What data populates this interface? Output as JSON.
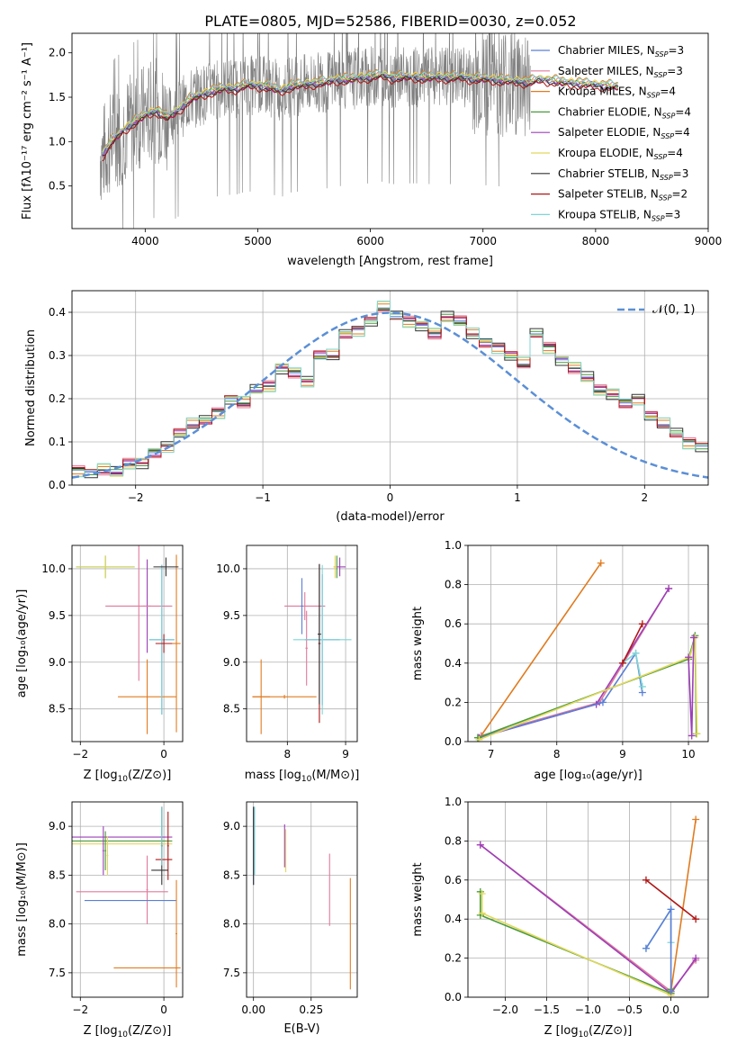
{
  "figure": {
    "title": "PLATE=0805, MJD=52586, FIBERID=0030, z=0.052"
  },
  "colors": {
    "observed": "#808080",
    "Chabrier MILES": "#5b7fd6",
    "Salpeter MILES": "#e07a9c",
    "Kroupa MILES": "#e07b20",
    "Chabrier ELODIE": "#4a9a3e",
    "Salpeter ELODIE": "#9c3fb8",
    "Kroupa ELODIE": "#e2d85c",
    "Chabrier STELIB": "#333333",
    "Salpeter STELIB": "#b01616",
    "Kroupa STELIB": "#7fd6d6",
    "gauss": "#5b8fd6"
  },
  "chart_data": [
    {
      "panel": "spectrum",
      "type": "line",
      "title": "PLATE=0805, MJD=52586, FIBERID=0030, z=0.052",
      "xlabel": "wavelength [Angstrom, rest frame]",
      "ylabel": "Flux [f_λ 10^-17 erg cm^-2 s^-1 A^-1]",
      "xlim": [
        3350,
        9000
      ],
      "ylim": [
        0.02,
        2.22
      ],
      "xticks": [
        4000,
        5000,
        6000,
        7000,
        8000,
        9000
      ],
      "yticks": [
        0.5,
        1.0,
        1.5,
        2.0
      ],
      "grid": false,
      "legend_position": "right",
      "observed_wavelength_range": [
        3600,
        7420
      ],
      "continuum_x": [
        3620,
        3700,
        3800,
        3900,
        4000,
        4100,
        4200,
        4300,
        4400,
        4500,
        4600,
        4700,
        4800,
        4900,
        5000,
        5100,
        5200,
        5300,
        5400,
        5500,
        5600,
        5700,
        5800,
        5900,
        6000,
        6100,
        6200,
        6300,
        6400,
        6500,
        6600,
        6700,
        6800,
        6900,
        7000,
        7100,
        7200,
        7300,
        7400,
        7500,
        7600,
        7700,
        7800,
        7900,
        8000,
        8100,
        8200
      ],
      "continuum_y": [
        0.85,
        1.0,
        1.12,
        1.22,
        1.3,
        1.35,
        1.27,
        1.36,
        1.48,
        1.53,
        1.57,
        1.6,
        1.6,
        1.64,
        1.63,
        1.62,
        1.57,
        1.63,
        1.64,
        1.66,
        1.67,
        1.7,
        1.7,
        1.72,
        1.73,
        1.75,
        1.72,
        1.73,
        1.73,
        1.72,
        1.73,
        1.72,
        1.73,
        1.71,
        1.71,
        1.7,
        1.69,
        1.68,
        1.67,
        1.7,
        1.69,
        1.67,
        1.66,
        1.65,
        1.64,
        1.63,
        1.62
      ],
      "series": [
        {
          "name": "Chabrier MILES",
          "nssp": "3",
          "offset": 0.0
        },
        {
          "name": "Salpeter MILES",
          "nssp": "3",
          "offset": 0.01
        },
        {
          "name": "Kroupa MILES",
          "nssp": "4",
          "offset": 0.04
        },
        {
          "name": "Chabrier ELODIE",
          "nssp": "4",
          "offset": 0.0
        },
        {
          "name": "Salpeter ELODIE",
          "nssp": "4",
          "offset": -0.01
        },
        {
          "name": "Kroupa ELODIE",
          "nssp": "4",
          "offset": 0.02
        },
        {
          "name": "Chabrier STELIB",
          "nssp": "3",
          "offset": -0.02
        },
        {
          "name": "Salpeter STELIB",
          "nssp": "2",
          "offset": -0.04
        },
        {
          "name": "Kroupa STELIB",
          "nssp": "3",
          "offset": 0.03
        }
      ]
    },
    {
      "panel": "residuals",
      "type": "line",
      "xlabel": "(data-model)/error",
      "ylabel": "Normed distribution",
      "xlim": [
        -2.5,
        2.5
      ],
      "ylim": [
        0.0,
        0.45
      ],
      "xticks": [
        -2,
        -1,
        0,
        1,
        2
      ],
      "yticks": [
        0.0,
        0.1,
        0.2,
        0.3,
        0.4
      ],
      "grid": true,
      "legend_position": "top-right",
      "legend_label": "𝒩(0, 1)",
      "bin_width": 0.1,
      "bin_start": -2.5,
      "values": [
        0.035,
        0.03,
        0.035,
        0.03,
        0.05,
        0.05,
        0.075,
        0.09,
        0.12,
        0.14,
        0.15,
        0.17,
        0.2,
        0.19,
        0.22,
        0.23,
        0.27,
        0.26,
        0.24,
        0.3,
        0.3,
        0.35,
        0.36,
        0.38,
        0.41,
        0.39,
        0.38,
        0.37,
        0.35,
        0.39,
        0.38,
        0.35,
        0.33,
        0.32,
        0.3,
        0.28,
        0.35,
        0.32,
        0.29,
        0.27,
        0.25,
        0.22,
        0.21,
        0.19,
        0.2,
        0.16,
        0.14,
        0.12,
        0.1,
        0.09
      ],
      "series_offsets": [
        {
          "name": "Chabrier MILES",
          "d": 0.0
        },
        {
          "name": "Salpeter MILES",
          "d": 0.012
        },
        {
          "name": "Kroupa MILES",
          "d": -0.01
        },
        {
          "name": "Chabrier ELODIE",
          "d": 0.006
        },
        {
          "name": "Salpeter ELODIE",
          "d": -0.006
        },
        {
          "name": "Kroupa ELODIE",
          "d": 0.015
        },
        {
          "name": "Chabrier STELIB",
          "d": -0.013
        },
        {
          "name": "Salpeter STELIB",
          "d": 0.009
        },
        {
          "name": "Kroupa STELIB",
          "d": -0.016
        }
      ]
    },
    {
      "panel": "Z-age",
      "type": "scatter",
      "xlabel": "Z [log10(Z/Z⊙)]",
      "ylabel": "age [log10(age/yr)]",
      "xlim": [
        -2.2,
        0.45
      ],
      "ylim": [
        8.15,
        10.25
      ],
      "xticks": [
        -2,
        0
      ],
      "yticks": [
        8.5,
        9.0,
        9.5,
        10.0
      ],
      "grid": true,
      "points": [
        {
          "s": "Chabrier ELODIE",
          "x": -1.4,
          "xe": 0.7,
          "y": 10.02,
          "ye": 0.12
        },
        {
          "s": "Kroupa ELODIE",
          "x": -1.4,
          "xe": 0.7,
          "y": 10.02,
          "ye": 0.12
        },
        {
          "s": "Salpeter ELODIE",
          "x": -0.4,
          "xe": 0.1,
          "y": 9.6,
          "ye": 0.5
        },
        {
          "s": "Salpeter MILES",
          "x": -0.6,
          "xe": 0.8,
          "y": 9.6,
          "ye": 0.8
        },
        {
          "s": "Kroupa MILES",
          "x": -0.4,
          "xe": 0.7,
          "y": 8.63,
          "ye": 0.4
        },
        {
          "s": "Kroupa MILES",
          "x": 0.3,
          "xe": 0.1,
          "y": 9.2,
          "ye": 0.95
        },
        {
          "s": "Chabrier MILES",
          "x": -0.05,
          "xe": 0.3,
          "y": 9.24,
          "ye": 0.8
        },
        {
          "s": "Kroupa STELIB",
          "x": -0.05,
          "xe": 0.3,
          "y": 9.24,
          "ye": 0.8
        },
        {
          "s": "Salpeter STELIB",
          "x": 0.0,
          "xe": 0.2,
          "y": 9.2,
          "ye": 0.1
        },
        {
          "s": "Chabrier STELIB",
          "x": 0.05,
          "xe": 0.3,
          "y": 10.02,
          "ye": 0.1
        }
      ]
    },
    {
      "panel": "mass-age",
      "type": "scatter",
      "xlabel": "mass [log10(M/M⊙)]",
      "ylabel": "",
      "xlim": [
        7.3,
        9.2
      ],
      "ylim": [
        8.15,
        10.25
      ],
      "xticks": [
        8,
        9
      ],
      "yticks": [
        8.5,
        9.0,
        9.5,
        10.0
      ],
      "grid": true,
      "points": [
        {
          "s": "Kroupa MILES",
          "x": 7.55,
          "xe": 0.15,
          "y": 8.63,
          "ye": 0.4
        },
        {
          "s": "Kroupa MILES",
          "x": 7.95,
          "xe": 0.55,
          "y": 8.63,
          "ye": 0.02
        },
        {
          "s": "Salpeter MILES",
          "x": 8.3,
          "xe": 0.35,
          "y": 9.6,
          "ye": 0.15
        },
        {
          "s": "Chabrier MILES",
          "x": 8.25,
          "xe": 0.02,
          "y": 9.6,
          "ye": 0.3
        },
        {
          "s": "Salpeter MILES",
          "x": 8.33,
          "xe": 0.02,
          "y": 9.15,
          "ye": 0.4
        },
        {
          "s": "Chabrier MILES",
          "x": 8.6,
          "xe": 0.3,
          "y": 9.24,
          "ye": 0.7
        },
        {
          "s": "Kroupa STELIB",
          "x": 8.6,
          "xe": 0.5,
          "y": 9.24,
          "ye": 0.8
        },
        {
          "s": "Salpeter STELIB",
          "x": 8.55,
          "xe": 0.02,
          "y": 9.2,
          "ye": 0.85
        },
        {
          "s": "Chabrier STELIB",
          "x": 8.55,
          "xe": 0.03,
          "y": 9.3,
          "ye": 0.75
        },
        {
          "s": "Chabrier ELODIE",
          "x": 8.85,
          "xe": 0.02,
          "y": 10.02,
          "ye": 0.12
        },
        {
          "s": "Salpeter ELODIE",
          "x": 8.9,
          "xe": 0.1,
          "y": 10.02,
          "ye": 0.1
        },
        {
          "s": "Kroupa ELODIE",
          "x": 8.82,
          "xe": 0.03,
          "y": 10.02,
          "ye": 0.12
        }
      ]
    },
    {
      "panel": "age-massweight",
      "type": "line",
      "xlabel": "age [log10(age/yr)]",
      "ylabel": "mass weight",
      "xlim": [
        6.65,
        10.3
      ],
      "ylim": [
        0.0,
        1.0
      ],
      "xticks": [
        7,
        8,
        9,
        10
      ],
      "yticks": [
        0.0,
        0.2,
        0.4,
        0.6,
        0.8,
        1.0
      ],
      "grid": true,
      "series": [
        {
          "name": "Kroupa MILES",
          "x": [
            6.85,
            8.67
          ],
          "y": [
            0.03,
            0.91
          ]
        },
        {
          "name": "Salpeter MILES",
          "x": [
            6.85,
            8.65,
            9.7
          ],
          "y": [
            0.03,
            0.2,
            0.78
          ]
        },
        {
          "name": "Salpeter ELODIE",
          "x": [
            6.82,
            8.6,
            9.7
          ],
          "y": [
            0.02,
            0.19,
            0.78
          ]
        },
        {
          "name": "Chabrier MILES",
          "x": [
            6.8,
            8.7,
            9.2,
            9.3
          ],
          "y": [
            0.02,
            0.2,
            0.45,
            0.25
          ]
        },
        {
          "name": "Kroupa STELIB",
          "x": [
            9.0,
            9.2,
            9.3
          ],
          "y": [
            0.4,
            0.45,
            0.28
          ]
        },
        {
          "name": "Salpeter STELIB",
          "x": [
            9.0,
            9.3
          ],
          "y": [
            0.4,
            0.6
          ]
        },
        {
          "name": "Chabrier ELODIE",
          "x": [
            6.8,
            10.0,
            10.1,
            10.12
          ],
          "y": [
            0.02,
            0.42,
            0.54,
            0.04
          ]
        },
        {
          "name": "Kroupa ELODIE",
          "x": [
            6.82,
            10.02,
            10.1,
            10.13
          ],
          "y": [
            0.01,
            0.43,
            0.53,
            0.04
          ]
        },
        {
          "name": "Salpeter ELODIE",
          "x": [
            10.0,
            10.05,
            10.08
          ],
          "y": [
            0.43,
            0.03,
            0.53
          ]
        }
      ]
    },
    {
      "panel": "Z-mass",
      "type": "scatter",
      "xlabel": "Z [log10(Z/Z⊙)]",
      "ylabel": "mass [log10(M/M⊙)]",
      "xlim": [
        -2.2,
        0.45
      ],
      "ylim": [
        7.25,
        9.25
      ],
      "xticks": [
        -2,
        0
      ],
      "yticks": [
        7.5,
        8.0,
        8.5,
        9.0
      ],
      "grid": true,
      "points": [
        {
          "s": "Salpeter ELODIE",
          "x": -1.0,
          "xe": 1.2,
          "y": 8.89,
          "ye": 0.0
        },
        {
          "s": "Chabrier ELODIE",
          "x": -1.0,
          "xe": 1.2,
          "y": 8.85,
          "ye": 0.0
        },
        {
          "s": "Kroupa ELODIE",
          "x": -1.0,
          "xe": 1.2,
          "y": 8.82,
          "ye": 0.0
        },
        {
          "s": "Chabrier ELODIE",
          "x": -1.4,
          "xe": 0.02,
          "y": 8.75,
          "ye": 0.2
        },
        {
          "s": "Salpeter ELODIE",
          "x": -1.45,
          "xe": 0.02,
          "y": 8.75,
          "ye": 0.25
        },
        {
          "s": "Kroupa ELODIE",
          "x": -1.35,
          "xe": 0.02,
          "y": 8.7,
          "ye": 0.2
        },
        {
          "s": "Salpeter MILES",
          "x": -0.4,
          "xe": 0.02,
          "y": 8.35,
          "ye": 0.35
        },
        {
          "s": "Salpeter MILES",
          "x": -1.0,
          "xe": 1.1,
          "y": 8.33,
          "ye": 0.0
        },
        {
          "s": "Chabrier MILES",
          "x": -0.8,
          "xe": 1.1,
          "y": 8.24,
          "ye": 0.0
        },
        {
          "s": "Kroupa MILES",
          "x": -0.4,
          "xe": 0.8,
          "y": 7.55,
          "ye": 0.0
        },
        {
          "s": "Kroupa MILES",
          "x": 0.3,
          "xe": 0.02,
          "y": 7.9,
          "ye": 0.55
        },
        {
          "s": "Chabrier STELIB",
          "x": -0.05,
          "xe": 0.02,
          "y": 8.8,
          "ye": 0.4
        },
        {
          "s": "Salpeter STELIB",
          "x": 0.0,
          "xe": 0.2,
          "y": 8.66,
          "ye": 0.0
        },
        {
          "s": "Salpeter STELIB",
          "x": 0.1,
          "xe": 0.02,
          "y": 8.8,
          "ye": 0.35
        },
        {
          "s": "Kroupa STELIB",
          "x": -0.05,
          "xe": 0.02,
          "y": 8.9,
          "ye": 0.3
        },
        {
          "s": "Chabrier STELIB",
          "x": -0.1,
          "xe": 0.2,
          "y": 8.55,
          "ye": 0.0
        }
      ]
    },
    {
      "panel": "EBV-mass",
      "type": "scatter",
      "xlabel": "E(B-V)",
      "ylabel": "",
      "xlim": [
        -0.03,
        0.45
      ],
      "ylim": [
        7.25,
        9.25
      ],
      "xticks": [
        0.0,
        0.25
      ],
      "xticklabels": [
        "0.00",
        "0.25"
      ],
      "yticks": [
        7.5,
        8.0,
        8.5,
        9.0
      ],
      "grid": true,
      "points": [
        {
          "s": "Chabrier MILES",
          "x": 0.0,
          "xe": 0.0,
          "y": 8.8,
          "ye": 0.4
        },
        {
          "s": "Kroupa STELIB",
          "x": 0.005,
          "xe": 0.0,
          "y": 8.85,
          "ye": 0.35
        },
        {
          "s": "Chabrier STELIB",
          "x": 0.0,
          "xe": 0.0,
          "y": 8.8,
          "ye": 0.4
        },
        {
          "s": "Salpeter ELODIE",
          "x": 0.135,
          "xe": 0.0,
          "y": 8.8,
          "ye": 0.22
        },
        {
          "s": "Kroupa ELODIE",
          "x": 0.14,
          "xe": 0.0,
          "y": 8.75,
          "ye": 0.22
        },
        {
          "s": "Salpeter MILES",
          "x": 0.33,
          "xe": 0.0,
          "y": 8.35,
          "ye": 0.37
        },
        {
          "s": "Kroupa MILES",
          "x": 0.42,
          "xe": 0.0,
          "y": 7.9,
          "ye": 0.57
        }
      ]
    },
    {
      "panel": "Z-massweight",
      "type": "line",
      "xlabel": "Z [log10(Z/Z⊙)]",
      "ylabel": "mass weight",
      "xlim": [
        -2.45,
        0.45
      ],
      "ylim": [
        0.0,
        1.0
      ],
      "xticks": [
        -2.0,
        -1.5,
        -1.0,
        -0.5,
        0.0
      ],
      "xticklabels": [
        "−2.0",
        "−1.5",
        "−1.0",
        "−0.5",
        "0.0"
      ],
      "yticks": [
        0.0,
        0.2,
        0.4,
        0.6,
        0.8,
        1.0
      ],
      "grid": true,
      "series": [
        {
          "name": "Salpeter MILES",
          "x": [
            -2.3,
            0.0,
            0.3
          ],
          "y": [
            0.78,
            0.03,
            0.19
          ]
        },
        {
          "name": "Salpeter ELODIE",
          "x": [
            -2.3,
            0.0,
            0.3
          ],
          "y": [
            0.78,
            0.02,
            0.2
          ]
        },
        {
          "name": "Chabrier ELODIE",
          "x": [
            -2.3,
            -2.3,
            0.0,
            0.0
          ],
          "y": [
            0.54,
            0.42,
            0.02,
            0.04
          ]
        },
        {
          "name": "Kroupa ELODIE",
          "x": [
            -2.28,
            -2.28,
            0.0,
            0.0
          ],
          "y": [
            0.53,
            0.43,
            0.01,
            0.03
          ]
        },
        {
          "name": "Kroupa MILES",
          "x": [
            0.0,
            0.3
          ],
          "y": [
            0.03,
            0.91
          ]
        },
        {
          "name": "Salpeter STELIB",
          "x": [
            -0.3,
            0.3
          ],
          "y": [
            0.6,
            0.4
          ]
        },
        {
          "name": "Kroupa STELIB",
          "x": [
            -0.3,
            0.0,
            0.0
          ],
          "y": [
            0.25,
            0.45,
            0.28
          ]
        },
        {
          "name": "Chabrier MILES",
          "x": [
            -0.3,
            0.0,
            0.0
          ],
          "y": [
            0.25,
            0.45,
            0.03
          ]
        }
      ]
    }
  ]
}
